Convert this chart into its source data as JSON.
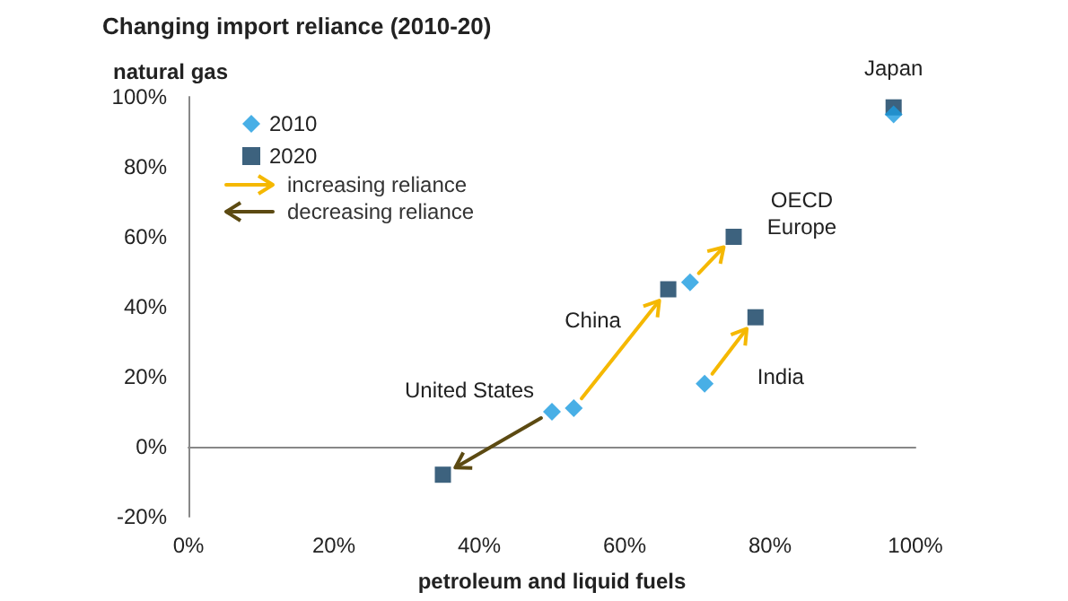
{
  "chart_data": {
    "type": "scatter",
    "title": "Changing import reliance (2010-20)",
    "xlabel": "petroleum and liquid fuels",
    "ylabel": "natural gas",
    "series": [
      {
        "name": "2010",
        "color": "#1a9be0",
        "marker": "diamond",
        "x": [
          97,
          69,
          53,
          71,
          50
        ],
        "values": [
          95,
          47,
          11,
          18,
          10
        ]
      },
      {
        "name": "2020",
        "color": "#0d3b5e",
        "marker": "square",
        "x": [
          97,
          75,
          66,
          78,
          35
        ],
        "values": [
          97,
          60,
          45,
          37,
          -8
        ]
      }
    ],
    "annotations": [
      {
        "text": "Japan",
        "x": 97,
        "y": 97
      },
      {
        "text": "OECD\nEurope",
        "x": 75,
        "y": 60
      },
      {
        "text": "China",
        "x": 66,
        "y": 45
      },
      {
        "text": "India",
        "x": 78,
        "y": 37
      },
      {
        "text": "United States",
        "x": 50,
        "y": 10
      },
      "increasing reliance",
      "decreasing reliance"
    ],
    "xlim": [
      0,
      100
    ],
    "ylim": [
      -20,
      100
    ],
    "xticks": [
      {
        "value": 0,
        "label": "0%"
      },
      {
        "value": 20,
        "label": "20%"
      },
      {
        "value": 40,
        "label": "40%"
      },
      {
        "value": 60,
        "label": "60%"
      },
      {
        "value": 80,
        "label": "80%"
      },
      {
        "value": 100,
        "label": "100%"
      }
    ],
    "yticks": [
      {
        "value": -20,
        "label": "-20%"
      },
      {
        "value": 0,
        "label": "0%"
      },
      {
        "value": 20,
        "label": "20%"
      },
      {
        "value": 40,
        "label": "40%"
      },
      {
        "value": 60,
        "label": "60%"
      },
      {
        "value": 80,
        "label": "80%"
      },
      {
        "value": 100,
        "label": "100%"
      }
    ],
    "legend": "top left"
  }
}
